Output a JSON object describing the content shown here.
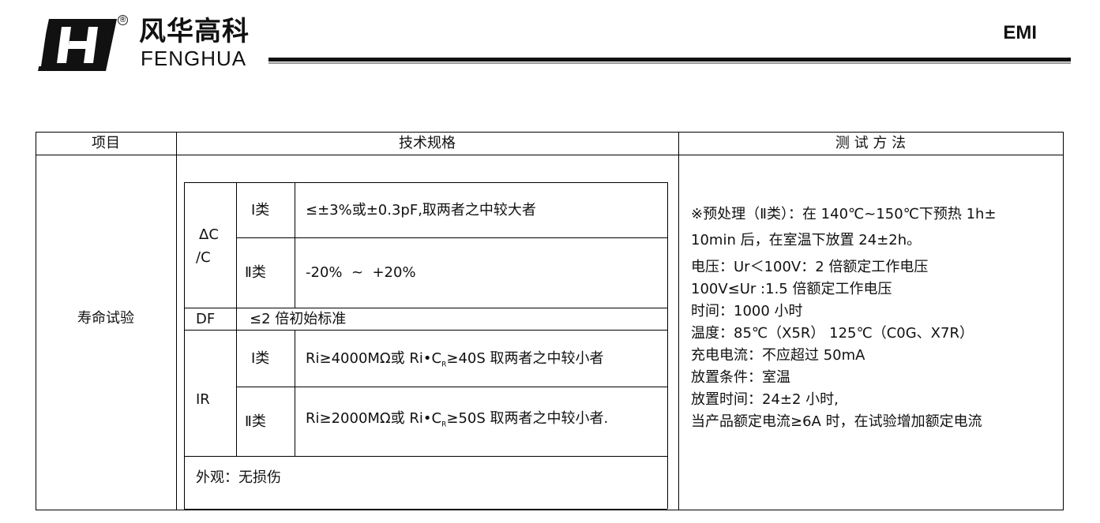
{
  "header": {
    "brand_cn": "风华高科",
    "brand_en": "FENGHUA",
    "registered": "®",
    "doc_title": "EMI"
  },
  "table": {
    "columns": [
      "项目",
      "技术规格",
      "测 试 方 法"
    ],
    "item": "寿命试验",
    "spec": {
      "dc_label": "ΔC\n/C",
      "dc_label_1": "ΔC",
      "dc_label_2": "/C",
      "class1": "Ⅰ类",
      "class2": "Ⅱ类",
      "dc_class1": "≤±3%或±0.3pF,取两者之中较大者",
      "dc_class2": "-20%  ~  +20%",
      "df_label": "DF",
      "df_value": "≤2 倍初始标准",
      "ir_label": "IR",
      "ir_class1_a": "Ri≥4000MΩ或 Ri•C",
      "ir_class1_sub": "R",
      "ir_class1_b": "≥40S 取两者之中较小者",
      "ir_class2_a": "Ri≥2000MΩ或 Ri•C",
      "ir_class2_sub": "R",
      "ir_class2_b": "≥50S 取两者之中较小者.",
      "appearance": "外观：无损伤"
    },
    "method": [
      "※预处理（Ⅱ类）：在 140℃~150℃下预热 1h±",
      "10min 后，在室温下放置 24±2h。",
      "电压：Ur＜100V：2 倍额定工作电压",
      "100V≤Ur :1.5 倍额定工作电压",
      "时间：1000 小时",
      "温度：85℃（X5R） 125℃（C0G、X7R）",
      "充电电流：不应超过 50mA",
      "放置条件：室温",
      "放置时间：24±2 小时,",
      "当产品额定电流≥6A 时，在试验增加额定电流"
    ]
  }
}
